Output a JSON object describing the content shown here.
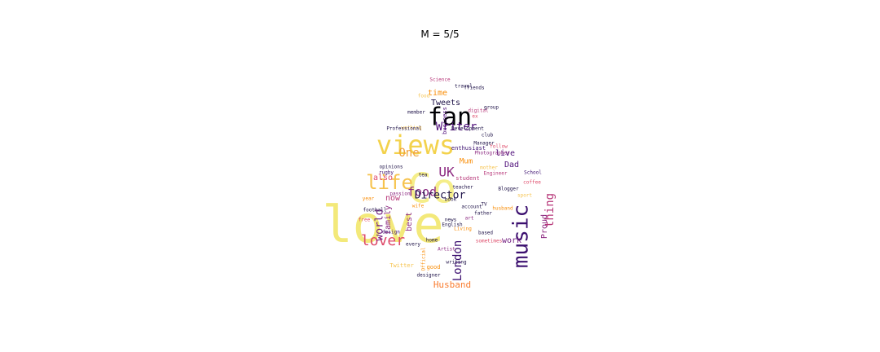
{
  "title": "M = 5/5",
  "words": [
    {
      "text": "love",
      "color": "#f3e97a",
      "size": "xl",
      "rot": 0
    },
    {
      "text": "Co",
      "color": "#f5ee8a",
      "size": "xl",
      "rot": 0
    },
    {
      "text": "views",
      "color": "#f3d24c",
      "size": "l",
      "rot": 0
    },
    {
      "text": "fan",
      "color": "#000004",
      "size": "l",
      "rot": 0
    },
    {
      "text": "music",
      "color": "#3b0f6f",
      "size": "l",
      "rot": -90
    },
    {
      "text": "life",
      "color": "#f6c34e",
      "size": "l",
      "rot": 0
    },
    {
      "text": "UK",
      "color": "#8c2981",
      "size": "m",
      "rot": 0
    },
    {
      "text": "lover",
      "color": "#de4968",
      "size": "m",
      "rot": 0
    },
    {
      "text": "food",
      "color": "#8c2981",
      "size": "m",
      "rot": 0
    },
    {
      "text": "Director",
      "color": "#1d1147",
      "size": "m",
      "rot": 0
    },
    {
      "text": "Writer",
      "color": "#51127c",
      "size": "m",
      "rot": 0
    },
    {
      "text": "thing",
      "color": "#b73779",
      "size": "m",
      "rot": -90
    },
    {
      "text": "London",
      "color": "#3b0f6f",
      "size": "m",
      "rot": -90
    },
    {
      "text": "world",
      "color": "#721f81",
      "size": "m",
      "rot": -90
    },
    {
      "text": "One",
      "color": "#f1a03a",
      "size": "m",
      "rot": 0
    },
    {
      "text": "Husband",
      "color": "#f97c2f",
      "size": "s",
      "rot": 0
    },
    {
      "text": "Tweets",
      "color": "#1d1147",
      "size": "s",
      "rot": 0
    },
    {
      "text": "time",
      "color": "#f98e09",
      "size": "s",
      "rot": 0
    },
    {
      "text": "Dad",
      "color": "#51127c",
      "size": "s",
      "rot": 0
    },
    {
      "text": "live",
      "color": "#51127c",
      "size": "s",
      "rot": 0
    },
    {
      "text": "Proud",
      "color": "#8c2981",
      "size": "s",
      "rot": -90
    },
    {
      "text": "work",
      "color": "#721f81",
      "size": "s",
      "rot": 0
    },
    {
      "text": "also",
      "color": "#de4968",
      "size": "s",
      "rot": 0
    },
    {
      "text": "family",
      "color": "#8c2981",
      "size": "s",
      "rot": -90
    },
    {
      "text": "now",
      "color": "#b73779",
      "size": "s",
      "rot": 0
    },
    {
      "text": "best",
      "color": "#8c2981",
      "size": "s",
      "rot": -90
    },
    {
      "text": "Mum",
      "color": "#f98e09",
      "size": "xs",
      "rot": 0
    },
    {
      "text": "enthusiast",
      "color": "#3b0f6f",
      "size": "xs",
      "rot": 0
    },
    {
      "text": "business",
      "color": "#51127c",
      "size": "xs",
      "rot": -90
    },
    {
      "text": "student",
      "color": "#b73779",
      "size": "xs",
      "rot": 0
    },
    {
      "text": "teacher",
      "color": "#1d1147",
      "size": "xs",
      "rot": 0
    },
    {
      "text": "Blogger",
      "color": "#1d1147",
      "size": "xs",
      "rot": 0
    },
    {
      "text": "Photographer",
      "color": "#8c2981",
      "size": "xs",
      "rot": 0
    },
    {
      "text": "School",
      "color": "#3b0f6f",
      "size": "xs",
      "rot": 0
    },
    {
      "text": "opinions",
      "color": "#1d1147",
      "size": "xs",
      "rot": 0
    },
    {
      "text": "rugby",
      "color": "#3b0f6f",
      "size": "xs",
      "rot": 0
    },
    {
      "text": "football",
      "color": "#1d1147",
      "size": "xs",
      "rot": 0
    },
    {
      "text": "year",
      "color": "#f98e09",
      "size": "xs",
      "rot": 0
    },
    {
      "text": "good",
      "color": "#f98e09",
      "size": "xs",
      "rot": 0
    },
    {
      "text": "Twitter",
      "color": "#f6c34e",
      "size": "xs",
      "rot": 0
    },
    {
      "text": "Artist",
      "color": "#8c2981",
      "size": "xs",
      "rot": 0
    },
    {
      "text": "design",
      "color": "#3b0f6f",
      "size": "xs",
      "rot": 0
    },
    {
      "text": "member",
      "color": "#1d1147",
      "size": "xs",
      "rot": 0
    },
    {
      "text": "travel",
      "color": "#1d1147",
      "size": "xs",
      "rot": 0
    },
    {
      "text": "working",
      "color": "#f6c34e",
      "size": "xs",
      "rot": 0
    },
    {
      "text": "father",
      "color": "#1d1147",
      "size": "xs",
      "rot": 0
    },
    {
      "text": "based",
      "color": "#1d1147",
      "size": "xs",
      "rot": 0
    },
    {
      "text": "Official",
      "color": "#f98e09",
      "size": "xs",
      "rot": -90
    },
    {
      "text": "TV",
      "color": "#1d1147",
      "size": "xs",
      "rot": 0
    },
    {
      "text": "book",
      "color": "#1d1147",
      "size": "xs",
      "rot": 0
    },
    {
      "text": "writing",
      "color": "#1d1147",
      "size": "xs",
      "rot": 0
    },
    {
      "text": "designer",
      "color": "#1d1147",
      "size": "xs",
      "rot": 0
    },
    {
      "text": "Living",
      "color": "#f98e09",
      "size": "xs",
      "rot": 0
    },
    {
      "text": "friends",
      "color": "#1d1147",
      "size": "xs",
      "rot": 0
    },
    {
      "text": "Professional",
      "color": "#1d1147",
      "size": "xs",
      "rot": 0
    },
    {
      "text": "digital",
      "color": "#b73779",
      "size": "xs",
      "rot": 0
    },
    {
      "text": "Science",
      "color": "#b73779",
      "size": "xs",
      "rot": 0
    },
    {
      "text": "follow",
      "color": "#de4968",
      "size": "xs",
      "rot": 0
    },
    {
      "text": "club",
      "color": "#1d1147",
      "size": "xs",
      "rot": 0
    },
    {
      "text": "group",
      "color": "#1d1147",
      "size": "xs",
      "rot": 0
    },
    {
      "text": "English",
      "color": "#1d1147",
      "size": "xs",
      "rot": 0
    },
    {
      "text": "art",
      "color": "#8c2981",
      "size": "xs",
      "rot": 0
    },
    {
      "text": "home",
      "color": "#1d1147",
      "size": "xs",
      "rot": 0
    },
    {
      "text": "sport",
      "color": "#f6c34e",
      "size": "xs",
      "rot": 0
    },
    {
      "text": "free",
      "color": "#de4968",
      "size": "xs",
      "rot": 0
    },
    {
      "text": "every",
      "color": "#1d1147",
      "size": "xs",
      "rot": 0
    },
    {
      "text": "husband",
      "color": "#f98e09",
      "size": "xs",
      "rot": 0
    },
    {
      "text": "sometimes",
      "color": "#de4968",
      "size": "xs",
      "rot": 0
    },
    {
      "text": "account",
      "color": "#1d1147",
      "size": "xs",
      "rot": 0
    },
    {
      "text": "Manager",
      "color": "#1d1147",
      "size": "xs",
      "rot": 0
    },
    {
      "text": "Development",
      "color": "#1d1147",
      "size": "xs",
      "rot": 0
    },
    {
      "text": "Engineer",
      "color": "#b73779",
      "size": "xs",
      "rot": 0
    },
    {
      "text": "food",
      "color": "#f6c34e",
      "size": "xs",
      "rot": 0
    },
    {
      "text": "news",
      "color": "#1d1147",
      "size": "xs",
      "rot": 0
    },
    {
      "text": "ex",
      "color": "#de4968",
      "size": "xs",
      "rot": 0
    },
    {
      "text": "mother",
      "color": "#f6c34e",
      "size": "xs",
      "rot": 0
    },
    {
      "text": "wife",
      "color": "#f98e09",
      "size": "xs",
      "rot": 0
    },
    {
      "text": "tea",
      "color": "#1d1147",
      "size": "xs",
      "rot": 0
    },
    {
      "text": "coffee",
      "color": "#de4968",
      "size": "xs",
      "rot": 0
    },
    {
      "text": "passion",
      "color": "#8c2981",
      "size": "xs",
      "rot": 0
    }
  ]
}
